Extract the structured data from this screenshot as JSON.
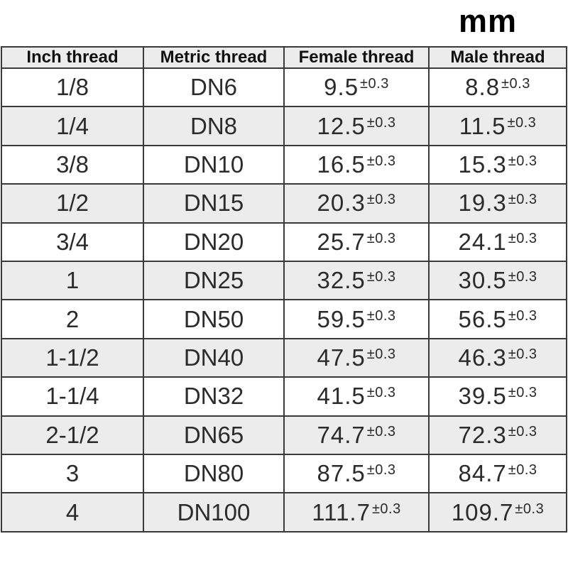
{
  "unit_label": "mm",
  "tolerance": "±0.3",
  "table": {
    "headers": [
      {
        "key": "inch",
        "label": "Inch thread"
      },
      {
        "key": "metric",
        "label": "Metric thread"
      },
      {
        "key": "female",
        "label": "Female thread"
      },
      {
        "key": "male",
        "label": "Male thread"
      }
    ],
    "rows": [
      {
        "inch": "1/8",
        "metric": "DN6",
        "female": "9.5",
        "male": "8.8"
      },
      {
        "inch": "1/4",
        "metric": "DN8",
        "female": "12.5",
        "male": "11.5"
      },
      {
        "inch": "3/8",
        "metric": "DN10",
        "female": "16.5",
        "male": "15.3"
      },
      {
        "inch": "1/2",
        "metric": "DN15",
        "female": "20.3",
        "male": "19.3"
      },
      {
        "inch": "3/4",
        "metric": "DN20",
        "female": "25.7",
        "male": "24.1"
      },
      {
        "inch": "1",
        "metric": "DN25",
        "female": "32.5",
        "male": "30.5"
      },
      {
        "inch": "2",
        "metric": "DN50",
        "female": "59.5",
        "male": "56.5"
      },
      {
        "inch": "1-1/2",
        "metric": "DN40",
        "female": "47.5",
        "male": "46.3"
      },
      {
        "inch": "1-1/4",
        "metric": "DN32",
        "female": "41.5",
        "male": "39.5"
      },
      {
        "inch": "2-1/2",
        "metric": "DN65",
        "female": "74.7",
        "male": "72.3"
      },
      {
        "inch": "3",
        "metric": "DN80",
        "female": "87.5",
        "male": "84.7"
      },
      {
        "inch": "4",
        "metric": "DN100",
        "female": "111.7",
        "male": "109.7"
      }
    ]
  },
  "colors": {
    "header_bg": "#ececec",
    "row_alt_bg": "#ececec",
    "row_bg": "#ffffff",
    "border": "#3a3a3a",
    "text": "#2b2b2b",
    "title_text": "#000000"
  },
  "chart_data": {
    "type": "table",
    "title": "mm",
    "columns": [
      "Inch thread",
      "Metric thread",
      "Female thread",
      "Male thread"
    ],
    "rows": [
      [
        "1/8",
        "DN6",
        "9.5±0.3",
        "8.8±0.3"
      ],
      [
        "1/4",
        "DN8",
        "12.5±0.3",
        "11.5±0.3"
      ],
      [
        "3/8",
        "DN10",
        "16.5±0.3",
        "15.3±0.3"
      ],
      [
        "1/2",
        "DN15",
        "20.3±0.3",
        "19.3±0.3"
      ],
      [
        "3/4",
        "DN20",
        "25.7±0.3",
        "24.1±0.3"
      ],
      [
        "1",
        "DN25",
        "32.5±0.3",
        "30.5±0.3"
      ],
      [
        "2",
        "DN50",
        "59.5±0.3",
        "56.5±0.3"
      ],
      [
        "1-1/2",
        "DN40",
        "47.5±0.3",
        "46.3±0.3"
      ],
      [
        "1-1/4",
        "DN32",
        "41.5±0.3",
        "39.5±0.3"
      ],
      [
        "2-1/2",
        "DN65",
        "74.7±0.3",
        "72.3±0.3"
      ],
      [
        "3",
        "DN80",
        "87.5±0.3",
        "84.7±0.3"
      ],
      [
        "4",
        "DN100",
        "111.7±0.3",
        "109.7±0.3"
      ]
    ],
    "layout_hints": {
      "header_shaded": true,
      "alternating_rows": true,
      "unit_label_position": "top-right"
    }
  }
}
